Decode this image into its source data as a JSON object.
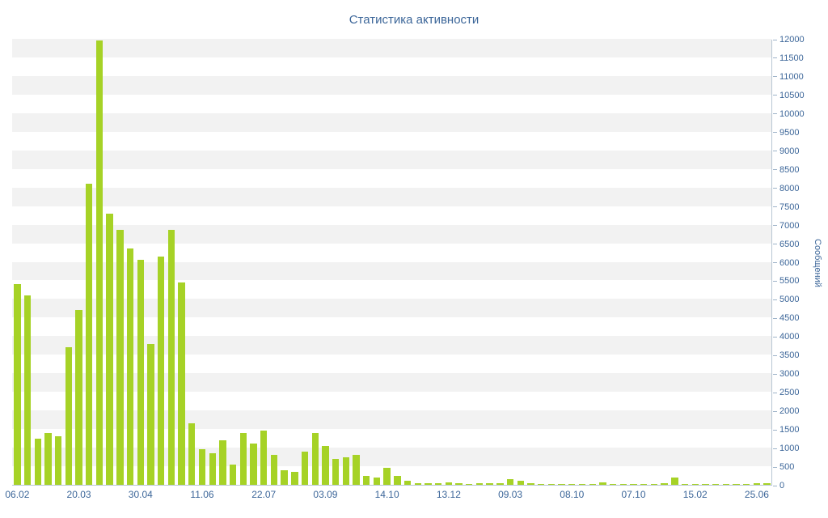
{
  "chart_data": {
    "type": "bar",
    "title": "Статистика активности",
    "ylabel": "Сообщений",
    "xlabel": "",
    "ylim": [
      0,
      12000
    ],
    "ytick_step": 500,
    "grid": "horizontal-stripes",
    "legend": "none",
    "x_label_every": 6,
    "x_tick_labels": [
      "06.02",
      "20.03",
      "30.04",
      "11.06",
      "22.07",
      "03.09",
      "14.10",
      "13.12",
      "09.03",
      "08.10",
      "07.10",
      "15.02",
      "25.06"
    ],
    "values": [
      5400,
      5100,
      1250,
      1400,
      1300,
      3700,
      4700,
      8100,
      11950,
      7300,
      6850,
      6350,
      6050,
      3800,
      6150,
      6850,
      5450,
      1650,
      950,
      850,
      1200,
      550,
      1400,
      1100,
      1450,
      800,
      400,
      350,
      900,
      1400,
      1050,
      700,
      750,
      800,
      250,
      200,
      450,
      250,
      100,
      50,
      40,
      50,
      60,
      40,
      30,
      40,
      50,
      40,
      150,
      100,
      40,
      30,
      20,
      30,
      20,
      30,
      20,
      60,
      20,
      30,
      20,
      30,
      20,
      40,
      200,
      30,
      20,
      30,
      20,
      30,
      20,
      30,
      50,
      40
    ],
    "colors": {
      "bar": "#a6d226",
      "text": "#3c6699",
      "stripe": "#f2f2f2",
      "axis": "#b9c7d4"
    }
  }
}
